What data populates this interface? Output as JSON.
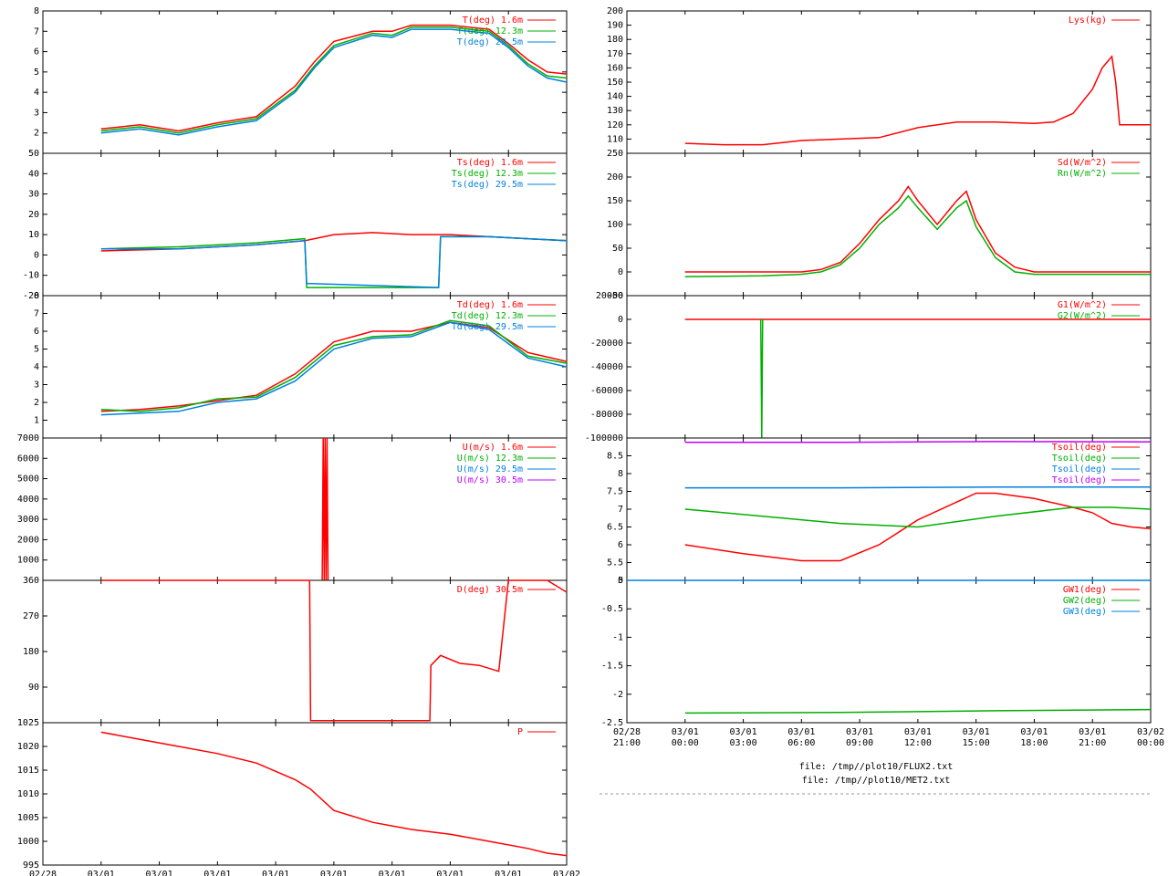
{
  "x_axis": {
    "ticks": [
      [
        "02/28",
        "21:00"
      ],
      [
        "03/01",
        "00:00"
      ],
      [
        "03/01",
        "03:00"
      ],
      [
        "03/01",
        "06:00"
      ],
      [
        "03/01",
        "09:00"
      ],
      [
        "03/01",
        "12:00"
      ],
      [
        "03/01",
        "15:00"
      ],
      [
        "03/01",
        "18:00"
      ],
      [
        "03/01",
        "21:00"
      ],
      [
        "03/02",
        "00:00"
      ]
    ],
    "hours": [
      -3,
      0,
      3,
      6,
      9,
      12,
      15,
      18,
      21,
      24
    ]
  },
  "footer": {
    "file1": "file: /tmp//plot10/FLUX2.txt",
    "file2": "file: /tmp//plot10/MET2.txt"
  },
  "chart_data": [
    {
      "type": "line",
      "column": "left",
      "ylim": [
        1,
        8
      ],
      "yticks": [
        2,
        3,
        4,
        5,
        6,
        7,
        8
      ],
      "series": [
        {
          "name": "T(deg)  1.6m",
          "color": "#ff0000",
          "x": [
            0,
            2,
            4,
            6,
            8,
            10,
            11,
            12,
            14,
            15,
            16,
            18,
            20,
            21,
            22,
            23,
            24
          ],
          "y": [
            2.2,
            2.4,
            2.1,
            2.5,
            2.8,
            4.3,
            5.5,
            6.5,
            7.0,
            7.0,
            7.3,
            7.3,
            7.1,
            6.4,
            5.6,
            5.0,
            4.9
          ]
        },
        {
          "name": "T(deg) 12.3m",
          "color": "#00b000",
          "x": [
            0,
            2,
            4,
            6,
            8,
            10,
            11,
            12,
            14,
            15,
            16,
            18,
            20,
            21,
            22,
            23,
            24
          ],
          "y": [
            2.1,
            2.3,
            2.0,
            2.4,
            2.7,
            4.1,
            5.3,
            6.3,
            6.9,
            6.8,
            7.2,
            7.2,
            7.0,
            6.3,
            5.4,
            4.8,
            4.7
          ]
        },
        {
          "name": "T(deg) 29.5m",
          "color": "#0080e0",
          "x": [
            0,
            2,
            4,
            6,
            8,
            10,
            11,
            12,
            14,
            15,
            16,
            18,
            20,
            21,
            22,
            23,
            24
          ],
          "y": [
            2.0,
            2.2,
            1.9,
            2.3,
            2.6,
            4.0,
            5.2,
            6.2,
            6.8,
            6.7,
            7.1,
            7.1,
            6.9,
            6.2,
            5.3,
            4.7,
            4.5
          ]
        }
      ]
    },
    {
      "type": "line",
      "column": "left",
      "ylim": [
        -20,
        50
      ],
      "yticks": [
        -20,
        -10,
        0,
        10,
        20,
        30,
        40,
        50
      ],
      "series": [
        {
          "name": "Ts(deg)  1.6m",
          "color": "#ff0000",
          "x": [
            0,
            4,
            8,
            10.5,
            11,
            12,
            14,
            16,
            18,
            20,
            22,
            24
          ],
          "y": [
            2,
            3,
            5,
            7,
            8,
            10,
            11,
            10,
            10,
            9,
            8,
            7
          ]
        },
        {
          "name": "Ts(deg) 12.3m",
          "color": "#00b000",
          "x": [
            0,
            4,
            8,
            10.5,
            10.6,
            17.4,
            17.5,
            20,
            22,
            24
          ],
          "y": [
            3,
            4,
            6,
            8,
            -16,
            -16,
            9,
            9,
            8,
            7
          ]
        },
        {
          "name": "Ts(deg) 29.5m",
          "color": "#0080e0",
          "x": [
            0,
            4,
            8,
            10.5,
            10.6,
            17.4,
            17.5,
            20,
            22,
            24
          ],
          "y": [
            3,
            3,
            5,
            7,
            -14,
            -16,
            9,
            9,
            8,
            7
          ]
        }
      ]
    },
    {
      "type": "line",
      "column": "left",
      "ylim": [
        0,
        8
      ],
      "yticks": [
        1,
        2,
        3,
        4,
        5,
        6,
        7,
        8
      ],
      "series": [
        {
          "name": "Td(deg)  1.6m",
          "color": "#ff0000",
          "x": [
            0,
            2,
            4,
            6,
            8,
            10,
            12,
            14,
            16,
            18,
            20,
            22,
            24
          ],
          "y": [
            1.5,
            1.6,
            1.8,
            2.1,
            2.4,
            3.6,
            5.4,
            6.0,
            6.0,
            6.5,
            6.2,
            4.8,
            4.3
          ]
        },
        {
          "name": "Td(deg) 12.3m",
          "color": "#00b000",
          "x": [
            0,
            2,
            4,
            6,
            8,
            10,
            12,
            14,
            16,
            18,
            20,
            22,
            24
          ],
          "y": [
            1.6,
            1.5,
            1.7,
            2.2,
            2.3,
            3.4,
            5.2,
            5.7,
            5.8,
            6.6,
            6.3,
            4.6,
            4.2
          ]
        },
        {
          "name": "Td(deg) 29.5m",
          "color": "#0080e0",
          "x": [
            0,
            2,
            4,
            6,
            8,
            10,
            12,
            14,
            16,
            18,
            20,
            22,
            24
          ],
          "y": [
            1.3,
            1.4,
            1.5,
            2.0,
            2.2,
            3.2,
            5.0,
            5.6,
            5.7,
            6.5,
            6.1,
            4.5,
            4.0
          ]
        }
      ]
    },
    {
      "type": "line",
      "column": "left",
      "ylim": [
        0,
        7000
      ],
      "yticks": [
        1000,
        2000,
        3000,
        4000,
        5000,
        6000,
        7000
      ],
      "series": [
        {
          "name": "U(m/s)  1.6m",
          "color": "#ff0000",
          "x": [
            11.4,
            11.45,
            11.5,
            11.55,
            11.6,
            11.65,
            11.7
          ],
          "y": [
            0,
            7000,
            0,
            7000,
            0,
            7000,
            0
          ]
        },
        {
          "name": "U(m/s) 12.3m",
          "color": "#00b000",
          "x": [],
          "y": []
        },
        {
          "name": "U(m/s) 29.5m",
          "color": "#0080e0",
          "x": [],
          "y": []
        },
        {
          "name": "U(m/s) 30.5m",
          "color": "#c000ff",
          "x": [],
          "y": []
        }
      ]
    },
    {
      "type": "line",
      "column": "left",
      "ylim": [
        0,
        360
      ],
      "yticks": [
        90,
        180,
        270,
        360
      ],
      "series": [
        {
          "name": "D(deg)  30.5m",
          "color": "#ff0000",
          "x": [
            0,
            10.75,
            10.8,
            16.95,
            17.0,
            17.5,
            18.5,
            19.5,
            20.5,
            21.0,
            22.0,
            23.0,
            24.0
          ],
          "y": [
            360,
            360,
            5,
            5,
            145,
            170,
            150,
            145,
            130,
            360,
            360,
            360,
            330
          ]
        }
      ]
    },
    {
      "type": "line",
      "column": "left",
      "ylim": [
        995,
        1025
      ],
      "yticks": [
        995,
        1000,
        1005,
        1010,
        1015,
        1020,
        1025
      ],
      "series": [
        {
          "name": "P",
          "color": "#ff0000",
          "x": [
            0,
            2,
            4,
            6,
            8,
            10,
            10.8,
            12,
            14,
            16,
            18,
            20,
            22,
            23,
            24
          ],
          "y": [
            1023,
            1021.5,
            1020,
            1018.5,
            1016.5,
            1013,
            1011,
            1006.5,
            1004,
            1002.5,
            1001.5,
            1000,
            998.5,
            997.5,
            997
          ]
        }
      ]
    },
    {
      "type": "line",
      "column": "right",
      "ylim": [
        100,
        200
      ],
      "yticks": [
        110,
        120,
        130,
        140,
        150,
        160,
        170,
        180,
        190,
        200
      ],
      "series": [
        {
          "name": "Lys(kg)",
          "color": "#ff0000",
          "x": [
            0,
            2,
            4,
            6,
            8,
            10,
            12,
            14,
            16,
            18,
            19,
            20,
            21,
            21.5,
            22,
            22.2,
            22.4,
            24
          ],
          "y": [
            107,
            106,
            106,
            109,
            110,
            111,
            118,
            122,
            122,
            121,
            122,
            128,
            145,
            160,
            168,
            150,
            120,
            120
          ]
        }
      ]
    },
    {
      "type": "line",
      "column": "right",
      "ylim": [
        -50,
        250
      ],
      "yticks": [
        -50,
        0,
        50,
        100,
        150,
        200,
        250
      ],
      "series": [
        {
          "name": "Sd(W/m^2)",
          "color": "#ff0000",
          "x": [
            0,
            4,
            6,
            7,
            8,
            9,
            10,
            11,
            11.5,
            12,
            13,
            14,
            14.5,
            15,
            16,
            17,
            18,
            20,
            22,
            24
          ],
          "y": [
            0,
            0,
            0,
            5,
            20,
            60,
            110,
            150,
            180,
            150,
            100,
            150,
            170,
            110,
            40,
            10,
            0,
            0,
            0,
            0
          ]
        },
        {
          "name": "Rn(W/m^2)",
          "color": "#00b000",
          "x": [
            0,
            4,
            6,
            7,
            8,
            9,
            10,
            11,
            11.5,
            12,
            13,
            14,
            14.5,
            15,
            16,
            17,
            18,
            20,
            22,
            24
          ],
          "y": [
            -10,
            -8,
            -5,
            0,
            15,
            50,
            100,
            135,
            160,
            135,
            90,
            135,
            150,
            95,
            30,
            0,
            -5,
            -5,
            -5,
            -5
          ]
        }
      ]
    },
    {
      "type": "line",
      "column": "right",
      "ylim": [
        -100000,
        20000
      ],
      "yticks": [
        -100000,
        -80000,
        -60000,
        -40000,
        -20000,
        0,
        20000
      ],
      "series": [
        {
          "name": "G1(W/m^2)",
          "color": "#ff0000",
          "x": [
            0,
            24
          ],
          "y": [
            0,
            0
          ]
        },
        {
          "name": "G2(W/m^2)",
          "color": "#00b000",
          "x": [
            3.9,
            3.95,
            4.0
          ],
          "y": [
            0,
            -100000,
            0
          ]
        }
      ]
    },
    {
      "type": "line",
      "column": "right",
      "ylim": [
        5,
        9
      ],
      "yticks": [
        5,
        5.5,
        6,
        6.5,
        7,
        7.5,
        8,
        8.5
      ],
      "series": [
        {
          "name": "Tsoil(deg)",
          "color": "#ff0000",
          "x": [
            0,
            3,
            6,
            8,
            10,
            12,
            14,
            15,
            16,
            18,
            20,
            21,
            22,
            23,
            24
          ],
          "y": [
            6.0,
            5.75,
            5.55,
            5.55,
            6.0,
            6.7,
            7.2,
            7.45,
            7.45,
            7.3,
            7.05,
            6.9,
            6.6,
            6.5,
            6.45
          ]
        },
        {
          "name": "Tsoil(deg)",
          "color": "#00b000",
          "x": [
            0,
            4,
            8,
            12,
            16,
            20,
            22,
            24
          ],
          "y": [
            7.0,
            6.8,
            6.6,
            6.5,
            6.8,
            7.05,
            7.05,
            7.0
          ]
        },
        {
          "name": "Tsoil(deg)",
          "color": "#0080e0",
          "x": [
            0,
            8,
            16,
            24
          ],
          "y": [
            7.6,
            7.6,
            7.62,
            7.62
          ]
        },
        {
          "name": "Tsoil(deg)",
          "color": "#c000ff",
          "x": [
            0,
            8,
            16,
            24
          ],
          "y": [
            8.88,
            8.88,
            8.9,
            8.89
          ]
        }
      ]
    },
    {
      "type": "line",
      "column": "right",
      "ylim": [
        -2.5,
        0
      ],
      "yticks": [
        -2.5,
        -2,
        -1.5,
        -1,
        -0.5,
        0
      ],
      "series": [
        {
          "name": "GW1(deg)",
          "color": "#ff0000",
          "x": [],
          "y": []
        },
        {
          "name": "GW2(deg)",
          "color": "#00b000",
          "x": [
            0,
            8,
            16,
            24
          ],
          "y": [
            -2.33,
            -2.32,
            -2.29,
            -2.27
          ]
        },
        {
          "name": "GW3(deg)",
          "color": "#0080e0",
          "x": [
            -3,
            24
          ],
          "y": [
            0,
            0
          ]
        }
      ]
    }
  ]
}
